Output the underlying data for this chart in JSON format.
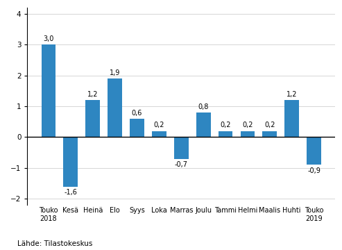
{
  "categories": [
    "Touko\n2018",
    "Kesä",
    "Heinä",
    "Elo",
    "Syys",
    "Loka",
    "Marras",
    "Joulu",
    "Tammi",
    "Helmi",
    "Maalis",
    "Huhti",
    "Touko\n2019"
  ],
  "values": [
    3.0,
    -1.6,
    1.2,
    1.9,
    0.6,
    0.2,
    -0.7,
    0.8,
    0.2,
    0.2,
    0.2,
    1.2,
    -0.9
  ],
  "bar_color": "#2e86c1",
  "ylim": [
    -2.2,
    4.2
  ],
  "yticks": [
    -2,
    -1,
    0,
    1,
    2,
    3,
    4
  ],
  "source_text": "Lähde: Tilastokeskus",
  "background_color": "#ffffff",
  "bar_width": 0.65
}
